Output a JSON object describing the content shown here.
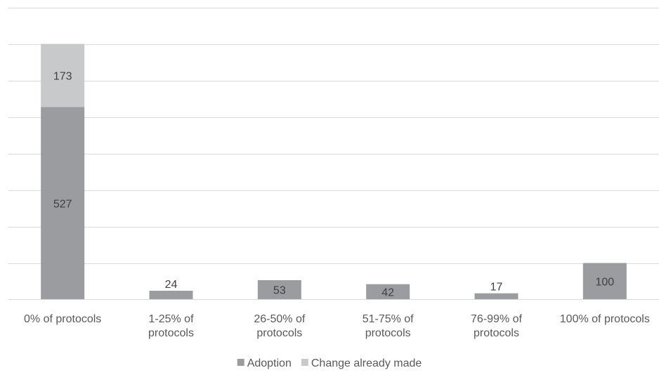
{
  "chart_data": {
    "type": "bar",
    "stacked": true,
    "title": "",
    "xlabel": "",
    "ylabel": "",
    "ylim": [
      0,
      800
    ],
    "grid": true,
    "legend_position": "bottom",
    "categories": [
      [
        "0% of protocols"
      ],
      [
        "1-25% of",
        "protocols"
      ],
      [
        "26-50% of",
        "protocols"
      ],
      [
        "51-75% of",
        "protocols"
      ],
      [
        "76-99% of",
        "protocols"
      ],
      [
        "100% of protocols"
      ]
    ],
    "series": [
      {
        "name": "Adoption",
        "values": [
          527,
          24,
          53,
          42,
          17,
          100
        ],
        "color": "#9a9c9f"
      },
      {
        "name": "Change already made",
        "values": [
          173,
          0,
          0,
          0,
          0,
          0
        ],
        "color": "#c8c9ca"
      }
    ],
    "data_labels": [
      {
        "series": 0,
        "index": 0,
        "text": "527",
        "position": "inside"
      },
      {
        "series": 1,
        "index": 0,
        "text": "173",
        "position": "inside"
      },
      {
        "series": 0,
        "index": 1,
        "text": "24",
        "position": "above"
      },
      {
        "series": 0,
        "index": 2,
        "text": "53",
        "position": "inside"
      },
      {
        "series": 0,
        "index": 3,
        "text": "42",
        "position": "inside"
      },
      {
        "series": 0,
        "index": 4,
        "text": "17",
        "position": "above"
      },
      {
        "series": 0,
        "index": 5,
        "text": "100",
        "position": "inside"
      }
    ],
    "colors": {
      "gridline": "#d9d9d9",
      "axis_text": "#595959",
      "label_text": "#404040"
    }
  }
}
